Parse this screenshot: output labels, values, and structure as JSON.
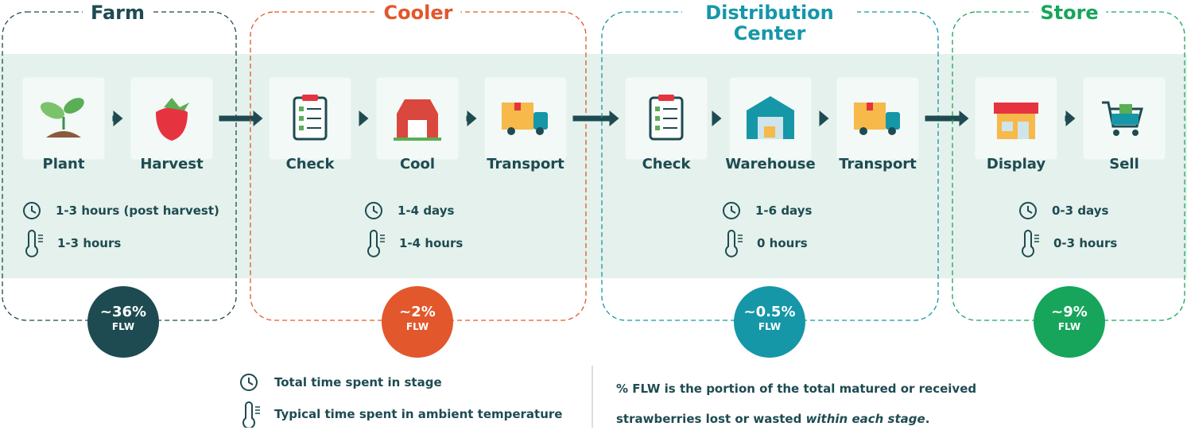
{
  "stages": [
    {
      "title": "Farm",
      "color": "#1e4b51",
      "steps": [
        "Plant",
        "Harvest"
      ],
      "time": "1-3 hours (post harvest)",
      "ambient": "1-3 hours",
      "flw": {
        "value": "~36%",
        "label": "FLW"
      }
    },
    {
      "title": "Cooler",
      "color": "#e2572b",
      "steps": [
        "Check",
        "Cool",
        "Transport"
      ],
      "time": "1-4 days",
      "ambient": "1-4 hours",
      "flw": {
        "value": "~2%",
        "label": "FLW"
      }
    },
    {
      "title": "Distribution Center",
      "color": "#1597a8",
      "steps": [
        "Check",
        "Warehouse",
        "Transport"
      ],
      "time": "1-6 days",
      "ambient": "0 hours",
      "flw": {
        "value": "~0.5%",
        "label": "FLW"
      }
    },
    {
      "title": "Store",
      "color": "#17a55b",
      "steps": [
        "Display",
        "Sell"
      ],
      "time": "0-3 days",
      "ambient": "0-3 hours",
      "flw": {
        "value": "~9%",
        "label": "FLW"
      }
    }
  ],
  "legend": {
    "time": "Total time spent in stage",
    "ambient": "Typical time spent in ambient temperature"
  },
  "note": {
    "text": "% FLW is the portion of the total matured or received strawberries lost or wasted ",
    "emphasis": "within each stage",
    "end": "."
  }
}
